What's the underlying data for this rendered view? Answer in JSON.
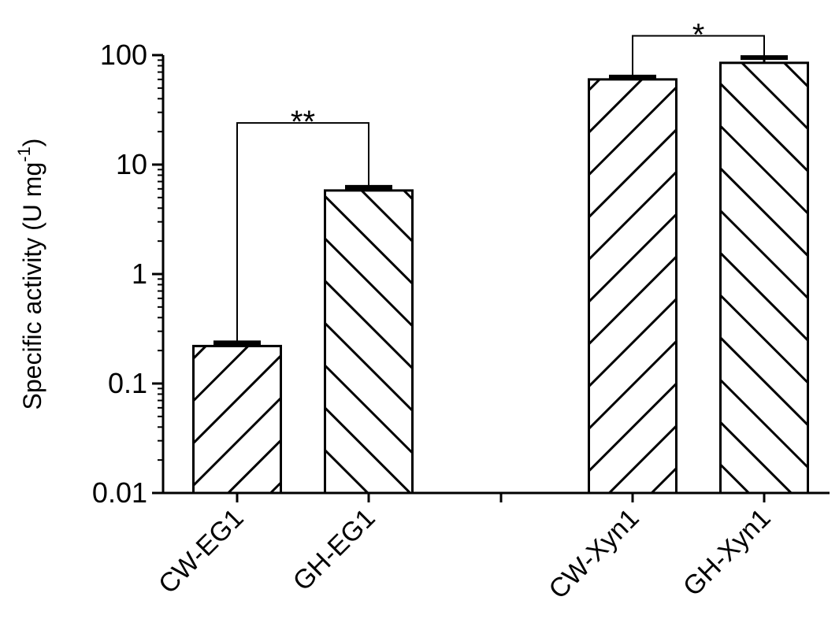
{
  "chart_data": {
    "type": "bar",
    "title": "",
    "xlabel": "",
    "ylabel": "Specific activity (U mg",
    "ylabel_superscript": "-1",
    "ylabel_close": ")",
    "yscale": "log",
    "ylim": [
      0.01,
      100
    ],
    "yticks": [
      0.01,
      0.1,
      1,
      10,
      100
    ],
    "ytick_labels": [
      "0.01",
      "0.1",
      "1",
      "10",
      "100"
    ],
    "grid": false,
    "categories": [
      "CW-EG1",
      "GH-EG1",
      "CW-Xyn1",
      "GH-Xyn1"
    ],
    "groups": [
      [
        "CW-EG1",
        "GH-EG1"
      ],
      [
        "CW-Xyn1",
        "GH-Xyn1"
      ]
    ],
    "values": [
      0.22,
      5.8,
      60,
      85
    ],
    "error_upper": [
      0.235,
      6.2,
      63,
      95
    ],
    "hatch": [
      "forward",
      "backward",
      "forward",
      "backward"
    ],
    "significance": [
      {
        "pair": [
          0,
          1
        ],
        "label": "**",
        "level": 24
      },
      {
        "pair": [
          2,
          3
        ],
        "label": "*",
        "level": 150
      }
    ]
  }
}
